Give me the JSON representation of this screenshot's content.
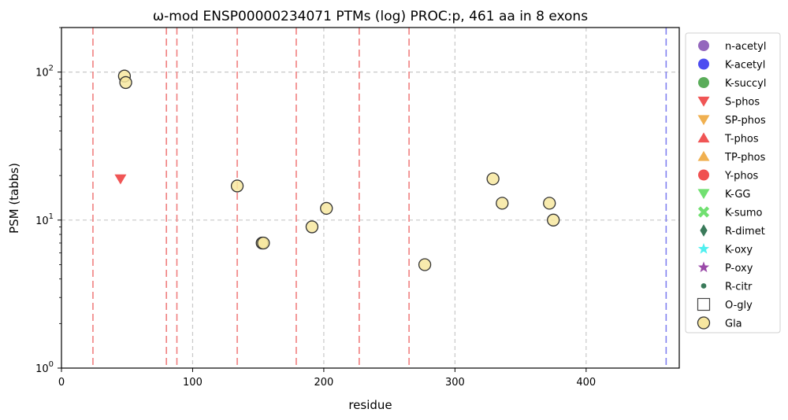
{
  "chart_data": {
    "type": "scatter",
    "title": "ω-mod ENSP00000234071 PTMs (log) PROC:p, 461 aa in 8 exons",
    "xlabel": "residue",
    "ylabel": "PSM (tabbs)",
    "xlim": [
      0,
      471
    ],
    "ylim": [
      1,
      200
    ],
    "yscale": "log",
    "x_ticks": [
      "0",
      "100",
      "200",
      "300",
      "400"
    ],
    "x_tick_values": [
      0,
      100,
      200,
      300,
      400
    ],
    "y_tick_values": [
      1,
      10,
      100
    ],
    "grid": true,
    "legend_position": "outside-right",
    "exon_boundaries": [
      24,
      80,
      88,
      134,
      179,
      227,
      265
    ],
    "protein_end": 461,
    "legend": [
      {
        "name": "n-acetyl",
        "marker": "circle",
        "color": "#9467bd"
      },
      {
        "name": "K-acetyl",
        "marker": "circle",
        "color": "#4c4cf0"
      },
      {
        "name": "K-succyl",
        "marker": "circle",
        "color": "#5aac5a"
      },
      {
        "name": "S-phos",
        "marker": "triangle-down",
        "color": "#f05555"
      },
      {
        "name": "SP-phos",
        "marker": "triangle-down",
        "color": "#f0b050"
      },
      {
        "name": "T-phos",
        "marker": "triangle-up",
        "color": "#f05555"
      },
      {
        "name": "TP-phos",
        "marker": "triangle-up",
        "color": "#f0b050"
      },
      {
        "name": "Y-phos",
        "marker": "circle",
        "color": "#f05050"
      },
      {
        "name": "K-GG",
        "marker": "triangle-down",
        "color": "#70e070"
      },
      {
        "name": "K-sumo",
        "marker": "x",
        "color": "#70e070"
      },
      {
        "name": "R-dimet",
        "marker": "diamond",
        "color": "#3a7a5a"
      },
      {
        "name": "K-oxy",
        "marker": "star",
        "color": "#50f0f0"
      },
      {
        "name": "P-oxy",
        "marker": "star",
        "color": "#9a4aa8"
      },
      {
        "name": "R-citr",
        "marker": "small-circle",
        "color": "#3a7a5a"
      },
      {
        "name": "O-gly",
        "marker": "square",
        "color": "#ffffff"
      },
      {
        "name": "Gla",
        "marker": "circle",
        "color": "#f7e7a0"
      }
    ],
    "series": [
      {
        "name": "S-phos",
        "marker": "triangle-down",
        "color": "#f05555",
        "points": [
          [
            45,
            19
          ]
        ]
      },
      {
        "name": "Gla",
        "marker": "circle",
        "color": "#f7e7a0",
        "points": [
          [
            48,
            94
          ],
          [
            49,
            85
          ],
          [
            134,
            17
          ],
          [
            153,
            7
          ],
          [
            154,
            7
          ],
          [
            191,
            9
          ],
          [
            202,
            12
          ],
          [
            277,
            5
          ],
          [
            329,
            19
          ],
          [
            336,
            13
          ],
          [
            372,
            13
          ],
          [
            375,
            10
          ]
        ]
      }
    ]
  }
}
